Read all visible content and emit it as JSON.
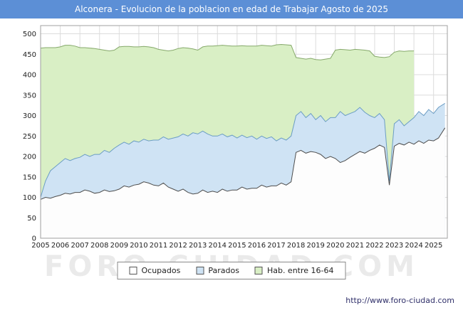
{
  "title_bar": {
    "text": "Alconera - Evolucion de la poblacion en edad de Trabajar Agosto de 2025",
    "bg_color": "#5c8fd6",
    "text_color": "#ffffff"
  },
  "watermark": {
    "text": "FORO-CIUDAD.COM"
  },
  "footer": {
    "url": "http://www.foro-ciudad.com",
    "color": "#30306a"
  },
  "legend": {
    "items": [
      {
        "label": "Ocupados",
        "color": "#ffffff"
      },
      {
        "label": "Parados",
        "color": "#cfe3f4"
      },
      {
        "label": "Hab. entre 16-64",
        "color": "#d9efc5"
      }
    ]
  },
  "axes": {
    "y_ticks": [
      0,
      50,
      100,
      150,
      200,
      250,
      300,
      350,
      400,
      450,
      500
    ],
    "x_ticks": [
      2005,
      2006,
      2007,
      2008,
      2009,
      2010,
      2011,
      2012,
      2013,
      2014,
      2015,
      2016,
      2017,
      2018,
      2019,
      2020,
      2021,
      2022,
      2023,
      2024,
      2025
    ]
  },
  "chart_data": {
    "type": "area",
    "title": "Alconera - Evolucion de la poblacion en edad de Trabajar Agosto de 2025",
    "xlabel": "",
    "ylabel": "",
    "xlim": [
      2005,
      2025.7
    ],
    "ylim": [
      0,
      520
    ],
    "grid": true,
    "legend_position": "bottom",
    "note": "Stacked areas: Parados is drawn stacked on Ocupados; Hab. entre 16-64 is the total population aged 16-64. Values estimated from gridlines, quarterly samples Jan 2005 - Aug 2025.",
    "x": [
      2005,
      2005.25,
      2005.5,
      2005.75,
      2006,
      2006.25,
      2006.5,
      2006.75,
      2007,
      2007.25,
      2007.5,
      2007.75,
      2008,
      2008.25,
      2008.5,
      2008.75,
      2009,
      2009.25,
      2009.5,
      2009.75,
      2010,
      2010.25,
      2010.5,
      2010.75,
      2011,
      2011.25,
      2011.5,
      2011.75,
      2012,
      2012.25,
      2012.5,
      2012.75,
      2013,
      2013.25,
      2013.5,
      2013.75,
      2014,
      2014.25,
      2014.5,
      2014.75,
      2015,
      2015.25,
      2015.5,
      2015.75,
      2016,
      2016.25,
      2016.5,
      2016.75,
      2017,
      2017.25,
      2017.5,
      2017.75,
      2018,
      2018.25,
      2018.5,
      2018.75,
      2019,
      2019.25,
      2019.5,
      2019.75,
      2020,
      2020.25,
      2020.5,
      2020.75,
      2021,
      2021.25,
      2021.5,
      2021.75,
      2022,
      2022.25,
      2022.5,
      2022.75,
      2023,
      2023.25,
      2023.5,
      2023.75,
      2024,
      2024.25,
      2024.5,
      2024.75,
      2025,
      2025.25,
      2025.58
    ],
    "series": [
      {
        "name": "Hab. entre 16-64",
        "fill": "#d9efc5",
        "line": "#86a96b",
        "values": [
          465,
          466,
          466,
          466,
          468,
          472,
          472,
          470,
          466,
          466,
          465,
          464,
          462,
          460,
          458,
          460,
          468,
          469,
          469,
          468,
          468,
          469,
          468,
          466,
          462,
          460,
          458,
          460,
          464,
          466,
          465,
          463,
          460,
          468,
          470,
          470,
          471,
          472,
          471,
          470,
          470,
          471,
          470,
          470,
          470,
          472,
          471,
          470,
          473,
          474,
          473,
          472,
          442,
          440,
          438,
          440,
          437,
          436,
          438,
          440,
          460,
          462,
          461,
          460,
          462,
          461,
          460,
          458,
          445,
          443,
          442,
          444,
          455,
          458,
          457,
          458,
          458,
          null,
          null,
          null,
          null,
          null,
          null
        ]
      },
      {
        "name": "Parados",
        "fill": "#cfe3f4",
        "line": "#6b9dc4",
        "stack_on": "Ocupados",
        "values": [
          5,
          40,
          67,
          73,
          80,
          85,
          82,
          83,
          86,
          87,
          85,
          95,
          93,
          97,
          96,
          104,
          108,
          107,
          105,
          108,
          103,
          104,
          103,
          110,
          112,
          113,
          117,
          125,
          133,
          135,
          138,
          150,
          145,
          144,
          143,
          135,
          138,
          135,
          133,
          134,
          127,
          127,
          126,
          128,
          120,
          120,
          119,
          120,
          110,
          110,
          110,
          112,
          90,
          95,
          87,
          93,
          80,
          95,
          90,
          95,
          100,
          125,
          110,
          107,
          105,
          108,
          100,
          85,
          75,
          77,
          68,
          10,
          55,
          58,
          47,
          50,
          65,
          72,
          68,
          75,
          67,
          75,
          60
        ]
      },
      {
        "name": "Ocupados",
        "fill": "#fdfdfd",
        "line": "#4d4d4d",
        "values": [
          95,
          100,
          98,
          102,
          105,
          110,
          108,
          112,
          112,
          118,
          115,
          110,
          112,
          118,
          114,
          116,
          120,
          128,
          125,
          130,
          132,
          138,
          135,
          130,
          128,
          135,
          125,
          120,
          115,
          120,
          112,
          108,
          110,
          118,
          112,
          115,
          112,
          120,
          115,
          118,
          118,
          125,
          120,
          122,
          122,
          130,
          125,
          128,
          128,
          135,
          130,
          138,
          210,
          215,
          208,
          212,
          210,
          205,
          195,
          200,
          195,
          185,
          190,
          198,
          205,
          212,
          208,
          215,
          220,
          228,
          222,
          130,
          225,
          232,
          228,
          235,
          230,
          238,
          232,
          240,
          238,
          245,
          270
        ]
      }
    ]
  }
}
